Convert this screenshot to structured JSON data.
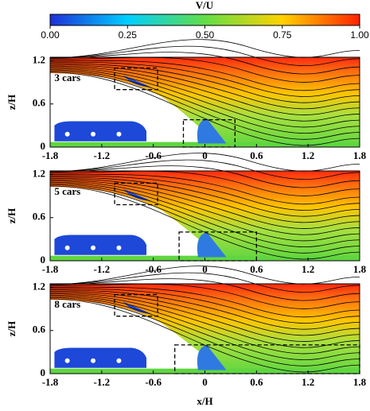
{
  "colorbar": {
    "label": "V/U",
    "lim": [
      0,
      1
    ],
    "ticks": [
      {
        "value": 0,
        "label": "0.00"
      },
      {
        "value": 0.25,
        "label": "0.25"
      },
      {
        "value": 0.5,
        "label": "0.50"
      },
      {
        "value": 0.75,
        "label": "0.75"
      },
      {
        "value": 1,
        "label": "1.00"
      }
    ]
  },
  "chart_data": [
    {
      "type": "contour",
      "label": "3 cars",
      "ylabel": "z/H",
      "xlim": [
        -1.8,
        1.8
      ],
      "ylim": [
        0,
        1.25
      ],
      "xticks": [
        -1.8,
        -1.2,
        -0.6,
        0,
        0.6,
        1.2,
        1.8
      ],
      "yticks": [
        0,
        0.6,
        1.2
      ]
    },
    {
      "type": "contour",
      "label": "5 cars",
      "ylabel": "z/H",
      "xlim": [
        -1.8,
        1.8
      ],
      "ylim": [
        0,
        1.25
      ],
      "xticks": [
        -1.8,
        -1.2,
        -0.6,
        0,
        0.6,
        1.2,
        1.8
      ],
      "yticks": [
        0,
        0.6,
        1.2
      ]
    },
    {
      "type": "contour",
      "label": "8 cars",
      "ylabel": "z/H",
      "xlabel": "x/H",
      "xlim": [
        -1.8,
        1.8
      ],
      "ylim": [
        0,
        1.25
      ],
      "xticks": [
        -1.8,
        -1.2,
        -0.6,
        0,
        0.6,
        1.2,
        1.8
      ],
      "yticks": [
        0,
        0.6,
        1.2
      ]
    }
  ]
}
